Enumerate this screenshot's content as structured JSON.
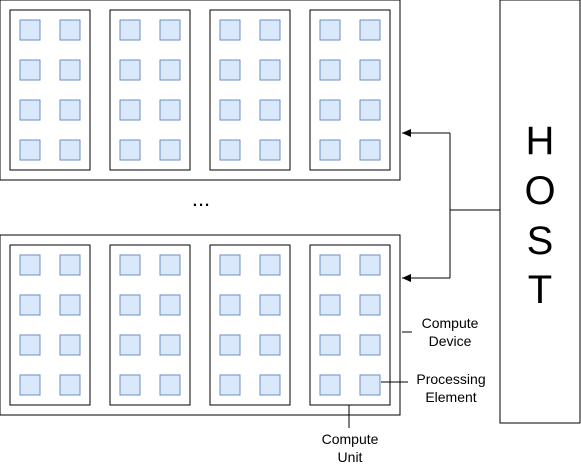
{
  "host": {
    "letters": [
      "H",
      "O",
      "S",
      "T"
    ]
  },
  "ellipsis": "...",
  "labels": {
    "compute_device": [
      "Compute",
      "Device"
    ],
    "processing_element": [
      "Processing",
      "Element"
    ],
    "compute_unit": [
      "Compute",
      "Unit"
    ]
  },
  "structure": {
    "devices_shown": 2,
    "units_per_device": 4,
    "pe_rows_per_unit": 4,
    "pe_cols_per_unit": 2
  },
  "colors": {
    "pe_fill": "#dae8fc",
    "pe_stroke": "#6c8ebf",
    "line": "#000000"
  }
}
